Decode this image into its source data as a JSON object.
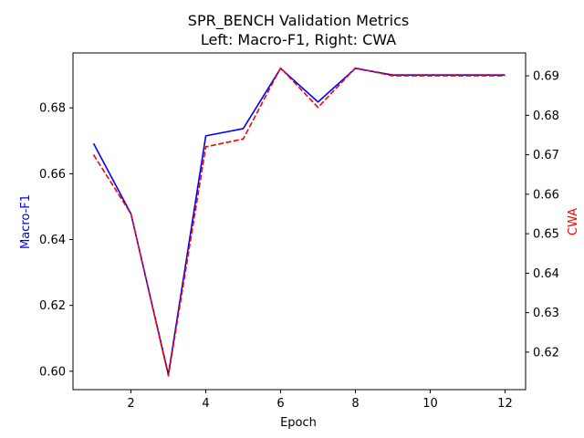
{
  "chart_data": {
    "type": "line",
    "title": "SPR_BENCH Validation Metrics",
    "subtitle": "Left: Macro-F1, Right: CWA",
    "xlabel": "Epoch",
    "ylabel_left": "Macro-F1",
    "ylabel_right": "CWA",
    "x": [
      1,
      2,
      3,
      4,
      5,
      6,
      7,
      8,
      9,
      10,
      11,
      12
    ],
    "xlim": [
      0.45,
      12.55
    ],
    "x_ticks": [
      2,
      4,
      6,
      8,
      10,
      12
    ],
    "ylim_left": [
      0.5944,
      0.6967
    ],
    "ylim_right": [
      0.6105,
      0.6958
    ],
    "y_ticks_left": [
      0.6,
      0.62,
      0.64,
      0.66,
      0.68
    ],
    "y_ticks_right": [
      0.62,
      0.63,
      0.64,
      0.65,
      0.66,
      0.67,
      0.68,
      0.69
    ],
    "grid": false,
    "series": [
      {
        "name": "Macro-F1",
        "axis": "left",
        "color": "#0000ff",
        "style": "solid",
        "values": [
          0.6692,
          0.6478,
          0.599,
          0.6715,
          0.6737,
          0.692,
          0.6818,
          0.692,
          0.69,
          0.69,
          0.69,
          0.69
        ]
      },
      {
        "name": "CWA",
        "axis": "right",
        "color": "#ff0000",
        "style": "dashed",
        "values": [
          0.67,
          0.655,
          0.614,
          0.672,
          0.674,
          0.692,
          0.682,
          0.692,
          0.69,
          0.69,
          0.69,
          0.69
        ]
      }
    ]
  }
}
